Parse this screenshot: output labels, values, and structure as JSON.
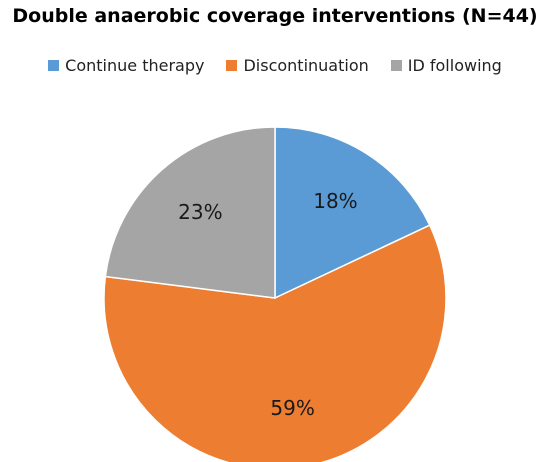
{
  "chart_data": {
    "type": "pie",
    "title": "Double anaerobic coverage interventions (N=44)",
    "legend_position": "top",
    "slices": [
      {
        "name": "Continue therapy",
        "value": 18,
        "label": "18%",
        "color": "#5b9bd5"
      },
      {
        "name": "Discontinuation",
        "value": 59,
        "label": "59%",
        "color": "#ed7d31"
      },
      {
        "name": "ID following",
        "value": 23,
        "label": "23%",
        "color": "#a5a5a5"
      }
    ]
  }
}
